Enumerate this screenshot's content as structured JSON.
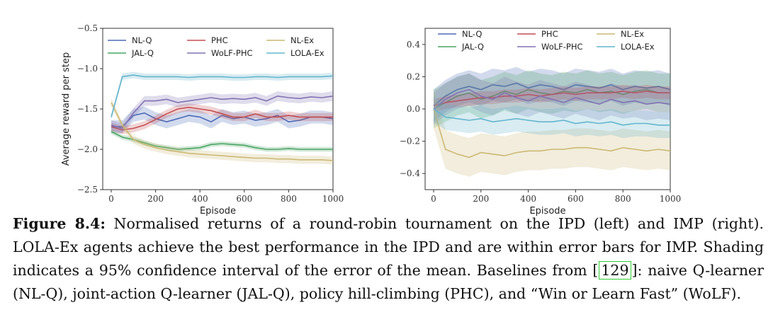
{
  "chart_data": [
    {
      "type": "line",
      "xlabel": "Episode",
      "ylabel": "Average reward per step",
      "xlim": [
        0,
        1000
      ],
      "ylim": [
        -2.5,
        -0.5
      ],
      "xticks": [
        0,
        200,
        400,
        600,
        800,
        1000
      ],
      "yticks": [
        -2.5,
        -2.0,
        -1.5,
        -1.0,
        -0.5
      ],
      "ytick_labels": [
        "−2.5",
        "−2.0",
        "−1.5",
        "−1.0",
        "−0.5"
      ],
      "grid": false,
      "legend_placement": "top",
      "x": [
        0,
        50,
        100,
        150,
        200,
        250,
        300,
        350,
        400,
        450,
        500,
        550,
        600,
        650,
        700,
        750,
        800,
        850,
        900,
        950,
        1000
      ],
      "series": [
        {
          "name": "NL-Q",
          "color": "#4c6ab8",
          "band": 0.08,
          "values": [
            -1.72,
            -1.72,
            -1.58,
            -1.55,
            -1.62,
            -1.66,
            -1.62,
            -1.58,
            -1.6,
            -1.66,
            -1.58,
            -1.62,
            -1.6,
            -1.64,
            -1.62,
            -1.58,
            -1.66,
            -1.64,
            -1.6,
            -1.6,
            -1.62
          ]
        },
        {
          "name": "JAL-Q",
          "color": "#4aa564",
          "band": 0.03,
          "values": [
            -1.78,
            -1.85,
            -1.88,
            -1.92,
            -1.96,
            -1.98,
            -2.0,
            -1.99,
            -1.98,
            -1.94,
            -1.93,
            -1.94,
            -1.95,
            -1.98,
            -2.0,
            -2.0,
            -1.99,
            -2.0,
            -2.0,
            -2.0,
            -2.0
          ]
        },
        {
          "name": "PHC",
          "color": "#c44e52",
          "band": 0.05,
          "values": [
            -1.72,
            -1.76,
            -1.74,
            -1.7,
            -1.63,
            -1.56,
            -1.5,
            -1.48,
            -1.5,
            -1.52,
            -1.56,
            -1.6,
            -1.6,
            -1.56,
            -1.6,
            -1.6,
            -1.58,
            -1.6,
            -1.6,
            -1.6,
            -1.6
          ]
        },
        {
          "name": "WoLF-PHC",
          "color": "#8172b2",
          "band": 0.06,
          "values": [
            -1.7,
            -1.74,
            -1.55,
            -1.4,
            -1.4,
            -1.38,
            -1.42,
            -1.4,
            -1.38,
            -1.36,
            -1.38,
            -1.37,
            -1.38,
            -1.36,
            -1.4,
            -1.34,
            -1.36,
            -1.37,
            -1.35,
            -1.36,
            -1.34
          ]
        },
        {
          "name": "NL-Ex",
          "color": "#ccb974",
          "band": 0.05,
          "values": [
            -1.42,
            -1.7,
            -1.88,
            -1.94,
            -1.98,
            -2.01,
            -2.03,
            -2.05,
            -2.06,
            -2.07,
            -2.08,
            -2.09,
            -2.1,
            -2.11,
            -2.11,
            -2.12,
            -2.12,
            -2.13,
            -2.13,
            -2.13,
            -2.14
          ]
        },
        {
          "name": "LOLA-Ex",
          "color": "#64b5cd",
          "band": 0.04,
          "values": [
            -1.6,
            -1.1,
            -1.08,
            -1.1,
            -1.1,
            -1.1,
            -1.1,
            -1.11,
            -1.1,
            -1.1,
            -1.1,
            -1.11,
            -1.11,
            -1.1,
            -1.1,
            -1.11,
            -1.1,
            -1.1,
            -1.1,
            -1.1,
            -1.09
          ]
        }
      ]
    },
    {
      "type": "line",
      "xlabel": "Episode",
      "ylabel": "",
      "xlim": [
        0,
        1000
      ],
      "ylim": [
        -0.5,
        0.5
      ],
      "xticks": [
        0,
        200,
        400,
        600,
        800,
        1000
      ],
      "yticks": [
        -0.4,
        -0.2,
        0.0,
        0.2,
        0.4
      ],
      "ytick_labels": [
        "−0.4",
        "−0.2",
        "0.0",
        "0.2",
        "0.4"
      ],
      "grid": false,
      "legend_placement": "top",
      "x": [
        0,
        50,
        100,
        150,
        200,
        250,
        300,
        350,
        400,
        450,
        500,
        550,
        600,
        650,
        700,
        750,
        800,
        850,
        900,
        950,
        1000
      ],
      "series": [
        {
          "name": "NL-Q",
          "color": "#4c6ab8",
          "band": 0.1,
          "values": [
            0.02,
            0.08,
            0.12,
            0.14,
            0.12,
            0.15,
            0.14,
            0.16,
            0.13,
            0.15,
            0.14,
            0.12,
            0.15,
            0.14,
            0.13,
            0.15,
            0.12,
            0.14,
            0.13,
            0.14,
            0.12
          ]
        },
        {
          "name": "JAL-Q",
          "color": "#4aa564",
          "band": 0.12,
          "values": [
            0.0,
            0.04,
            0.08,
            0.1,
            0.06,
            0.08,
            0.11,
            0.09,
            0.12,
            0.1,
            0.09,
            0.11,
            0.1,
            0.12,
            0.1,
            0.11,
            0.09,
            0.11,
            0.12,
            0.1,
            0.1
          ]
        },
        {
          "name": "PHC",
          "color": "#c44e52",
          "band": 0.04,
          "values": [
            0.02,
            0.04,
            0.05,
            0.06,
            0.07,
            0.07,
            0.08,
            0.08,
            0.09,
            0.08,
            0.09,
            0.1,
            0.09,
            0.1,
            0.1,
            0.1,
            0.11,
            0.1,
            0.11,
            0.1,
            0.1
          ]
        },
        {
          "name": "WoLF-PHC",
          "color": "#8172b2",
          "band": 0.1,
          "values": [
            0.0,
            0.06,
            0.1,
            0.12,
            0.08,
            0.06,
            0.1,
            0.07,
            0.05,
            0.08,
            0.06,
            0.04,
            0.07,
            0.05,
            0.03,
            0.06,
            0.04,
            0.05,
            0.03,
            0.04,
            0.03
          ]
        },
        {
          "name": "NL-Ex",
          "color": "#ccb974",
          "band": 0.12,
          "values": [
            0.0,
            -0.25,
            -0.28,
            -0.3,
            -0.27,
            -0.28,
            -0.29,
            -0.27,
            -0.26,
            -0.26,
            -0.25,
            -0.25,
            -0.24,
            -0.24,
            -0.25,
            -0.26,
            -0.24,
            -0.25,
            -0.26,
            -0.25,
            -0.26
          ]
        },
        {
          "name": "LOLA-Ex",
          "color": "#64b5cd",
          "band": 0.08,
          "values": [
            0.0,
            -0.05,
            -0.06,
            -0.07,
            -0.06,
            -0.08,
            -0.07,
            -0.06,
            -0.07,
            -0.08,
            -0.08,
            -0.07,
            -0.09,
            -0.08,
            -0.09,
            -0.08,
            -0.1,
            -0.09,
            -0.09,
            -0.1,
            -0.1
          ]
        }
      ]
    }
  ],
  "caption": {
    "label": "Figure 8.4:",
    "text_1": " Normalised returns of a round-robin tournament on the IPD (left) and IMP (right). LOLA-Ex agents achieve the best performance in the IPD and are within error bars for IMP. Shading indicates a 95% confidence interval of the error of the mean. Baselines from ",
    "citation": "129",
    "text_2": ": naive Q-learner (NL-Q), joint-action Q-learner (JAL-Q), policy hill-climbing (PHC), and “Win or Learn Fast” (WoLF)."
  }
}
